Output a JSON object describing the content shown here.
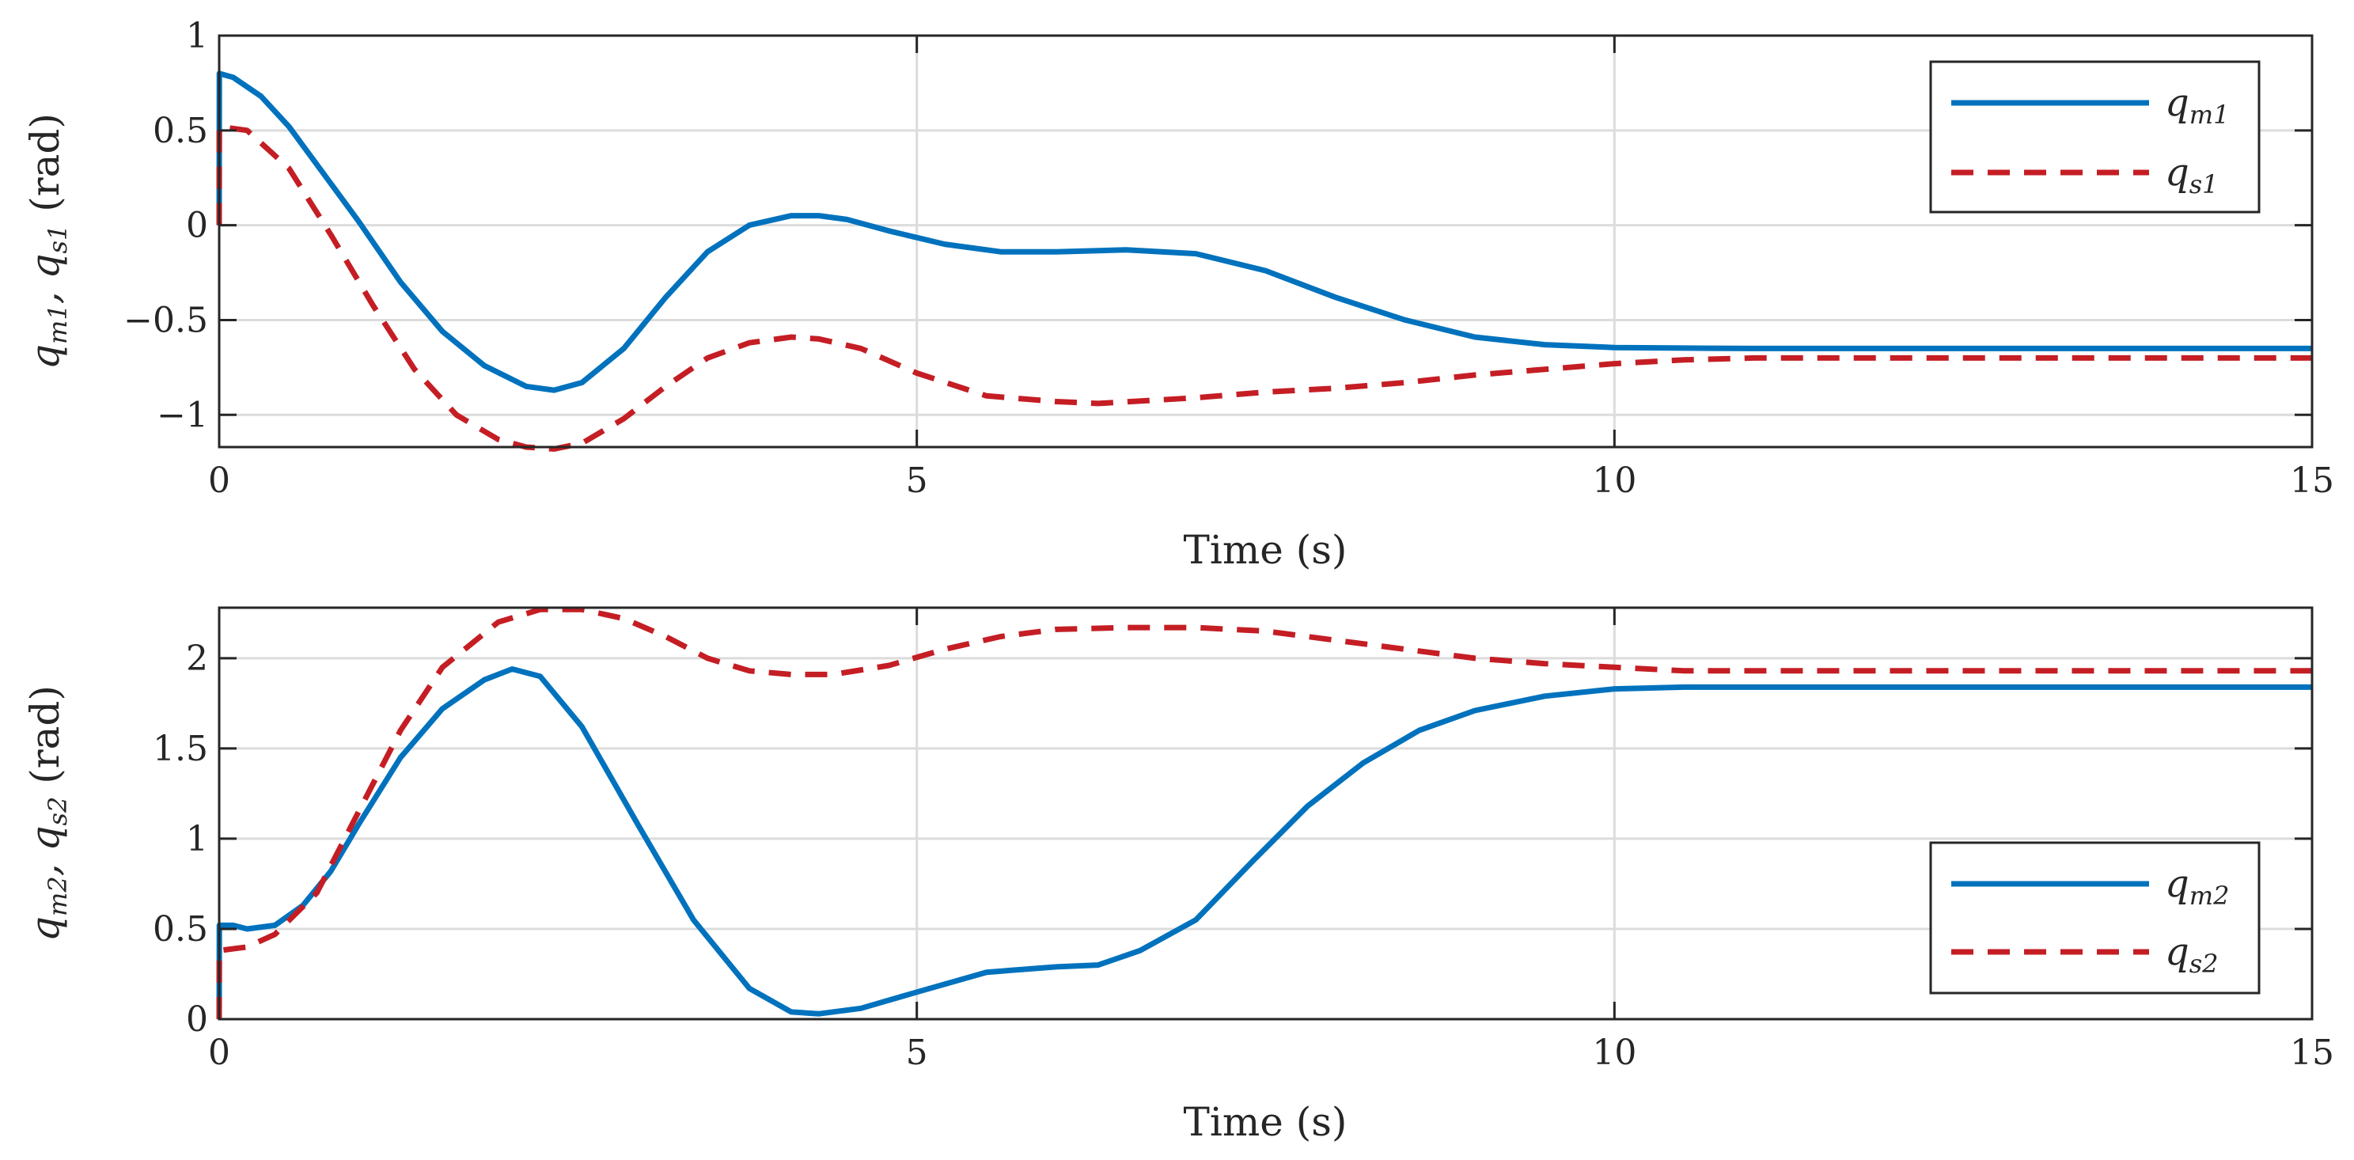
{
  "chart_data": [
    {
      "id": "top",
      "type": "line",
      "title": "",
      "xlabel": "Time (s)",
      "ylabel": {
        "main": "q",
        "sub1": "m1",
        "sep": ", q",
        "sub2": "s1",
        "unit": " (rad)"
      },
      "xlim": [
        0,
        15
      ],
      "ylim": [
        -1.17,
        1
      ],
      "xticks": [
        "0",
        "5",
        "10",
        "15"
      ],
      "xtick_values": [
        0,
        5,
        10,
        15
      ],
      "yticks": [
        "1",
        "0.5",
        "0",
        "−0.5",
        "−1"
      ],
      "ytick_values": [
        1,
        0.5,
        0,
        -0.5,
        -1
      ],
      "grid": true,
      "legend_position": "top-right",
      "series": [
        {
          "name": "q_m1",
          "legend": {
            "main": "q",
            "sub": "m1"
          },
          "color": "#0072BD",
          "style": "solid",
          "x": [
            0,
            0.001,
            0.1,
            0.3,
            0.5,
            0.8,
            1.0,
            1.3,
            1.6,
            1.9,
            2.2,
            2.4,
            2.6,
            2.9,
            3.2,
            3.5,
            3.8,
            4.1,
            4.3,
            4.5,
            4.8,
            5.2,
            5.6,
            6.0,
            6.5,
            7.0,
            7.5,
            8.0,
            8.5,
            9.0,
            9.5,
            10.0,
            10.5,
            11.0,
            12.0,
            13.0,
            14.0,
            15.0
          ],
          "y": [
            0,
            0.8,
            0.78,
            0.68,
            0.52,
            0.22,
            0.02,
            -0.3,
            -0.56,
            -0.74,
            -0.85,
            -0.87,
            -0.83,
            -0.65,
            -0.38,
            -0.14,
            0.0,
            0.05,
            0.05,
            0.03,
            -0.03,
            -0.1,
            -0.14,
            -0.14,
            -0.13,
            -0.15,
            -0.24,
            -0.38,
            -0.5,
            -0.59,
            -0.63,
            -0.645,
            -0.648,
            -0.65,
            -0.65,
            -0.65,
            -0.65,
            -0.65
          ]
        },
        {
          "name": "q_s1",
          "legend": {
            "main": "q",
            "sub": "s1"
          },
          "color": "#C41E24",
          "style": "dashed",
          "x": [
            0,
            0.001,
            0.2,
            0.5,
            0.8,
            1.1,
            1.4,
            1.7,
            2.0,
            2.2,
            2.4,
            2.6,
            2.9,
            3.2,
            3.5,
            3.8,
            4.1,
            4.3,
            4.6,
            5.0,
            5.5,
            6.0,
            6.3,
            7.0,
            7.5,
            8.0,
            8.5,
            9.0,
            9.5,
            10.0,
            10.5,
            11.0,
            12.0,
            13.0,
            14.0,
            15.0
          ],
          "y": [
            0,
            0.52,
            0.5,
            0.3,
            -0.05,
            -0.42,
            -0.76,
            -1.0,
            -1.13,
            -1.17,
            -1.18,
            -1.15,
            -1.02,
            -0.85,
            -0.7,
            -0.62,
            -0.59,
            -0.6,
            -0.65,
            -0.78,
            -0.9,
            -0.93,
            -0.94,
            -0.91,
            -0.88,
            -0.86,
            -0.83,
            -0.79,
            -0.76,
            -0.73,
            -0.71,
            -0.7,
            -0.7,
            -0.7,
            -0.7,
            -0.7
          ]
        }
      ]
    },
    {
      "id": "bottom",
      "type": "line",
      "title": "",
      "xlabel": "Time (s)",
      "ylabel": {
        "main": "q",
        "sub1": "m2",
        "sep": ", q",
        "sub2": "s2",
        "unit": " (rad)"
      },
      "xlim": [
        0,
        15
      ],
      "ylim": [
        0,
        2.28
      ],
      "xticks": [
        "0",
        "5",
        "10",
        "15"
      ],
      "xtick_values": [
        0,
        5,
        10,
        15
      ],
      "yticks": [
        "2",
        "1.5",
        "1",
        "0.5",
        "0"
      ],
      "ytick_values": [
        2,
        1.5,
        1,
        0.5,
        0
      ],
      "grid": true,
      "legend_position": "bottom-right",
      "series": [
        {
          "name": "q_m2",
          "legend": {
            "main": "q",
            "sub": "m2"
          },
          "color": "#0072BD",
          "style": "solid",
          "x": [
            0,
            0.001,
            0.1,
            0.2,
            0.4,
            0.6,
            0.8,
            1.0,
            1.3,
            1.6,
            1.9,
            2.1,
            2.3,
            2.6,
            3.0,
            3.4,
            3.8,
            4.1,
            4.3,
            4.6,
            5.0,
            5.5,
            6.0,
            6.3,
            6.6,
            7.0,
            7.4,
            7.8,
            8.2,
            8.6,
            9.0,
            9.5,
            10.0,
            10.5,
            11.0,
            12.0,
            13.0,
            14.0,
            15.0
          ],
          "y": [
            0,
            0.52,
            0.52,
            0.5,
            0.52,
            0.63,
            0.82,
            1.08,
            1.45,
            1.72,
            1.88,
            1.94,
            1.9,
            1.62,
            1.08,
            0.55,
            0.17,
            0.04,
            0.03,
            0.06,
            0.15,
            0.26,
            0.29,
            0.3,
            0.38,
            0.55,
            0.87,
            1.18,
            1.42,
            1.6,
            1.71,
            1.79,
            1.83,
            1.84,
            1.84,
            1.84,
            1.84,
            1.84,
            1.84
          ]
        },
        {
          "name": "q_s2",
          "legend": {
            "main": "q",
            "sub": "s2"
          },
          "color": "#C41E24",
          "style": "dashed",
          "x": [
            0,
            0.001,
            0.2,
            0.4,
            0.7,
            1.0,
            1.3,
            1.6,
            2.0,
            2.3,
            2.6,
            2.9,
            3.2,
            3.5,
            3.8,
            4.1,
            4.4,
            4.8,
            5.2,
            5.6,
            6.0,
            6.5,
            7.0,
            7.5,
            8.0,
            8.5,
            9.0,
            9.5,
            10.0,
            10.5,
            11.0,
            12.0,
            13.0,
            14.0,
            15.0
          ],
          "y": [
            0,
            0.38,
            0.4,
            0.47,
            0.7,
            1.15,
            1.6,
            1.95,
            2.2,
            2.27,
            2.27,
            2.22,
            2.12,
            2.0,
            1.93,
            1.91,
            1.91,
            1.96,
            2.05,
            2.12,
            2.16,
            2.17,
            2.17,
            2.15,
            2.1,
            2.05,
            2.0,
            1.97,
            1.95,
            1.93,
            1.93,
            1.93,
            1.93,
            1.93,
            1.93
          ]
        }
      ]
    }
  ]
}
